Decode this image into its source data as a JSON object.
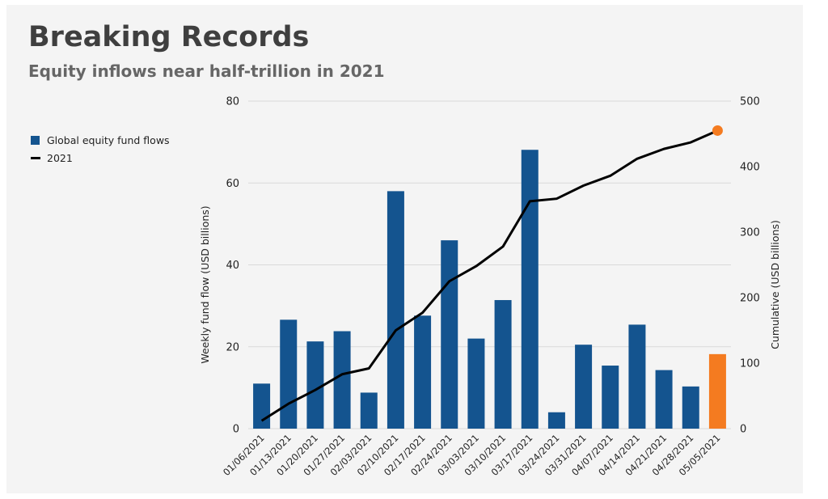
{
  "header": {
    "title": "Breaking Records",
    "subtitle": "Equity inflows near half-trillion in 2021"
  },
  "legend": {
    "items": [
      {
        "label": "Global equity fund flows",
        "kind": "bar",
        "color": "#14548f"
      },
      {
        "label": "2021",
        "kind": "line",
        "color": "#000000"
      }
    ]
  },
  "colors": {
    "bar": "#14548f",
    "highlight": "#f47b20",
    "line": "#000000",
    "grid": "#d9d9d9"
  },
  "chart_data": {
    "type": "bar",
    "title": "Breaking Records",
    "subtitle": "Equity inflows near half-trillion in 2021",
    "xlabel": "",
    "ylabel": "Weekly fund flow (USD billions)",
    "y2label": "Cumulative (USD billions)",
    "ylim": [
      0,
      80
    ],
    "y2lim": [
      0,
      500
    ],
    "yticks": [
      0,
      20,
      40,
      60,
      80
    ],
    "y2ticks": [
      0,
      100,
      200,
      300,
      400,
      500
    ],
    "grid": true,
    "legend_position": "left",
    "categories": [
      "01/06/2021",
      "01/13/2021",
      "01/20/2021",
      "01/27/2021",
      "02/03/2021",
      "02/10/2021",
      "02/17/2021",
      "02/24/2021",
      "03/03/2021",
      "03/10/2021",
      "03/17/2021",
      "03/24/2021",
      "03/31/2021",
      "04/07/2021",
      "04/14/2021",
      "04/21/2021",
      "04/28/2021",
      "05/05/2021"
    ],
    "series": [
      {
        "name": "Global equity fund flows",
        "type": "bar",
        "axis": "left",
        "values": [
          11,
          26.6,
          21.3,
          23.8,
          8.8,
          58,
          27.6,
          46,
          22,
          31.4,
          68.1,
          4,
          20.5,
          15.4,
          25.4,
          14.3,
          10.3,
          18.2
        ],
        "highlight_index": 17
      },
      {
        "name": "2021",
        "type": "line",
        "axis": "right",
        "values": [
          12,
          38,
          59,
          83,
          92,
          150,
          177,
          225,
          248,
          278,
          347,
          351,
          371,
          386,
          412,
          427,
          437,
          455
        ],
        "end_marker": true
      }
    ]
  }
}
